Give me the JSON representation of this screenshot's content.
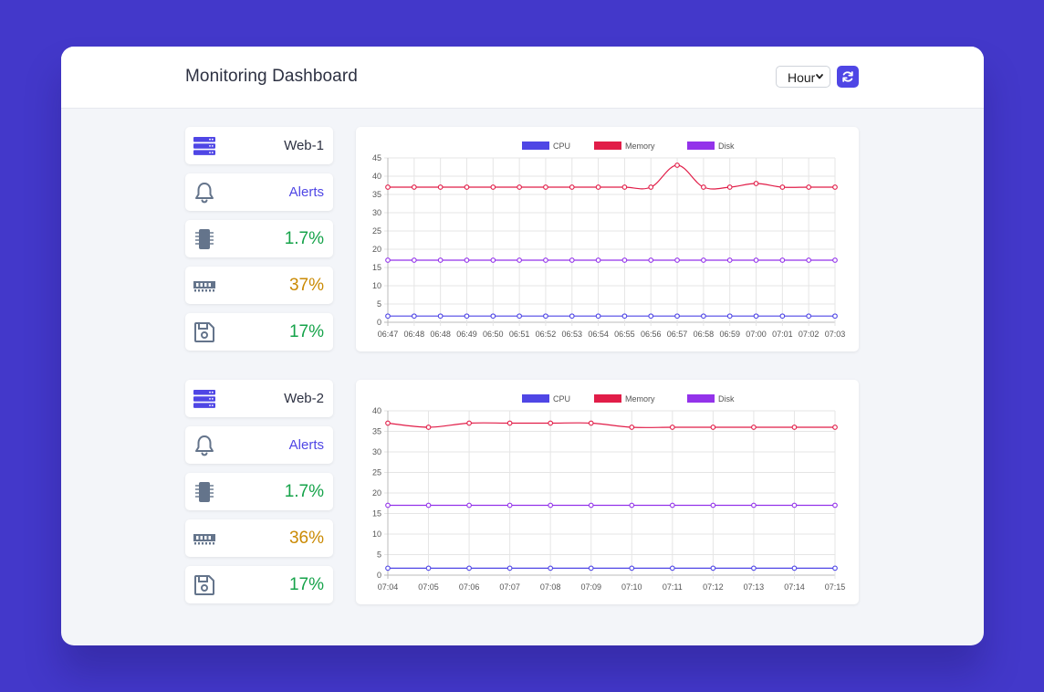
{
  "header": {
    "title": "Monitoring Dashboard",
    "range_select": "Hour",
    "refresh_icon": "refresh-icon"
  },
  "colors": {
    "cpu": "#4f46e5",
    "memory": "#e11d48",
    "disk": "#9333ea",
    "good": "#16a34a",
    "warn": "#ca8a04",
    "accent": "#4f46e5"
  },
  "servers": [
    {
      "name": "Web-1",
      "alerts_label": "Alerts",
      "cpu": "1.7%",
      "memory": "37%",
      "disk": "17%",
      "icons": [
        "server-icon",
        "bell-icon",
        "cpu-chip-icon",
        "memory-icon",
        "disk-save-icon"
      ]
    },
    {
      "name": "Web-2",
      "alerts_label": "Alerts",
      "cpu": "1.7%",
      "memory": "36%",
      "disk": "17%",
      "icons": [
        "server-icon",
        "bell-icon",
        "cpu-chip-icon",
        "memory-icon",
        "disk-save-icon"
      ]
    }
  ],
  "chart_data": [
    {
      "type": "line",
      "title": "",
      "legend": "top",
      "grid": true,
      "ylim": [
        0,
        45
      ],
      "yticks": [
        0,
        5,
        10,
        15,
        20,
        25,
        30,
        35,
        40,
        45
      ],
      "x": [
        "06:47",
        "06:48",
        "06:48",
        "06:49",
        "06:50",
        "06:51",
        "06:52",
        "06:53",
        "06:54",
        "06:55",
        "06:56",
        "06:57",
        "06:58",
        "06:59",
        "07:00",
        "07:01",
        "07:02",
        "07:03"
      ],
      "series": [
        {
          "name": "CPU",
          "color": "#4f46e5",
          "values": [
            1.7,
            1.7,
            1.7,
            1.7,
            1.7,
            1.7,
            1.7,
            1.7,
            1.7,
            1.7,
            1.7,
            1.7,
            1.7,
            1.7,
            1.7,
            1.7,
            1.7,
            1.7
          ]
        },
        {
          "name": "Memory",
          "color": "#e11d48",
          "values": [
            37,
            37,
            37,
            37,
            37,
            37,
            37,
            37,
            37,
            37,
            37,
            43,
            37,
            37,
            38,
            37,
            37,
            37
          ]
        },
        {
          "name": "Disk",
          "color": "#9333ea",
          "values": [
            17,
            17,
            17,
            17,
            17,
            17,
            17,
            17,
            17,
            17,
            17,
            17,
            17,
            17,
            17,
            17,
            17,
            17
          ]
        }
      ]
    },
    {
      "type": "line",
      "title": "",
      "legend": "top",
      "grid": true,
      "ylim": [
        0,
        40
      ],
      "yticks": [
        0,
        5,
        10,
        15,
        20,
        25,
        30,
        35,
        40
      ],
      "x": [
        "07:04",
        "07:05",
        "07:06",
        "07:07",
        "07:08",
        "07:09",
        "07:10",
        "07:11",
        "07:12",
        "07:13",
        "07:14",
        "07:15"
      ],
      "series": [
        {
          "name": "CPU",
          "color": "#4f46e5",
          "values": [
            1.7,
            1.7,
            1.7,
            1.7,
            1.7,
            1.7,
            1.7,
            1.7,
            1.7,
            1.7,
            1.7,
            1.7
          ]
        },
        {
          "name": "Memory",
          "color": "#e11d48",
          "values": [
            37,
            36,
            37,
            37,
            37,
            37,
            36,
            36,
            36,
            36,
            36,
            36
          ]
        },
        {
          "name": "Disk",
          "color": "#9333ea",
          "values": [
            17,
            17,
            17,
            17,
            17,
            17,
            17,
            17,
            17,
            17,
            17,
            17
          ]
        }
      ]
    }
  ]
}
